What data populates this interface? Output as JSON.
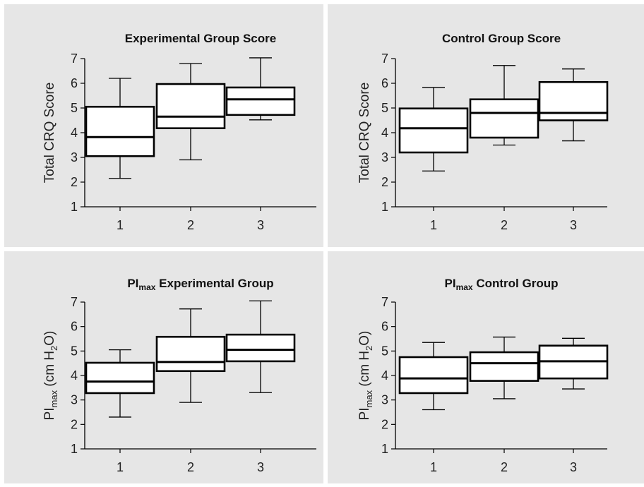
{
  "colors": {
    "panel_bg": "#e6e6e6",
    "box_fill": "#ffffff",
    "stroke": "#000000",
    "separator": "#ffffff",
    "text": "#222222"
  },
  "chart_data": [
    {
      "type": "box",
      "title": "Experimental Group Score",
      "ylabel": "Total CRQ Score",
      "xlabel": "",
      "ylim": [
        1,
        7
      ],
      "categories": [
        "1",
        "2",
        "3"
      ],
      "yticks": [
        "1",
        "2",
        "3",
        "4",
        "5",
        "6",
        "7"
      ],
      "grid": false,
      "boxes": [
        {
          "min": 2.15,
          "q1": 3.05,
          "median": 3.82,
          "q3": 5.05,
          "max": 6.2
        },
        {
          "min": 2.9,
          "q1": 4.18,
          "median": 4.65,
          "q3": 5.97,
          "max": 6.8
        },
        {
          "min": 4.52,
          "q1": 4.72,
          "median": 5.35,
          "q3": 5.83,
          "max": 7.03
        }
      ]
    },
    {
      "type": "box",
      "title": "Control Group Score",
      "ylabel": "Total CRQ Score",
      "xlabel": "",
      "ylim": [
        1,
        7
      ],
      "categories": [
        "1",
        "2",
        "3"
      ],
      "yticks": [
        "1",
        "2",
        "3",
        "4",
        "5",
        "6",
        "7"
      ],
      "grid": false,
      "boxes": [
        {
          "min": 2.45,
          "q1": 3.2,
          "median": 4.18,
          "q3": 4.98,
          "max": 5.83
        },
        {
          "min": 3.5,
          "q1": 3.8,
          "median": 4.8,
          "q3": 5.35,
          "max": 6.72
        },
        {
          "min": 3.67,
          "q1": 4.5,
          "median": 4.8,
          "q3": 6.05,
          "max": 6.58
        }
      ]
    },
    {
      "type": "box",
      "title": "PImax Experimental Group",
      "title_main": "PI",
      "title_sub": "max",
      "title_rest": " Experimental Group",
      "ylabel": "PImax (cm H2O)",
      "ylabel_parts": {
        "a": "PI",
        "b": "max",
        "c": " (cm H",
        "d": "2",
        "e": "O)"
      },
      "xlabel": "",
      "ylim": [
        1,
        7
      ],
      "categories": [
        "1",
        "2",
        "3"
      ],
      "yticks": [
        "1",
        "2",
        "3",
        "4",
        "5",
        "6",
        "7"
      ],
      "grid": false,
      "boxes": [
        {
          "min": 2.3,
          "q1": 3.28,
          "median": 3.75,
          "q3": 4.52,
          "max": 5.05
        },
        {
          "min": 2.9,
          "q1": 4.18,
          "median": 4.55,
          "q3": 5.58,
          "max": 6.72
        },
        {
          "min": 3.3,
          "q1": 4.58,
          "median": 5.05,
          "q3": 5.67,
          "max": 7.05
        }
      ]
    },
    {
      "type": "box",
      "title": "PImax Control Group",
      "title_main": "PI",
      "title_sub": "max",
      "title_rest": " Control Group",
      "ylabel": "PImax (cm H2O)",
      "ylabel_parts": {
        "a": "PI",
        "b": "max",
        "c": " (cm H",
        "d": "2",
        "e": "O)"
      },
      "xlabel": "",
      "ylim": [
        1,
        7
      ],
      "categories": [
        "1",
        "2",
        "3"
      ],
      "yticks": [
        "1",
        "2",
        "3",
        "4",
        "5",
        "6",
        "7"
      ],
      "grid": false,
      "boxes": [
        {
          "min": 2.6,
          "q1": 3.28,
          "median": 3.88,
          "q3": 4.75,
          "max": 5.35
        },
        {
          "min": 3.05,
          "q1": 3.78,
          "median": 4.5,
          "q3": 4.95,
          "max": 5.57
        },
        {
          "min": 3.45,
          "q1": 3.88,
          "median": 4.58,
          "q3": 5.22,
          "max": 5.52
        }
      ]
    }
  ]
}
